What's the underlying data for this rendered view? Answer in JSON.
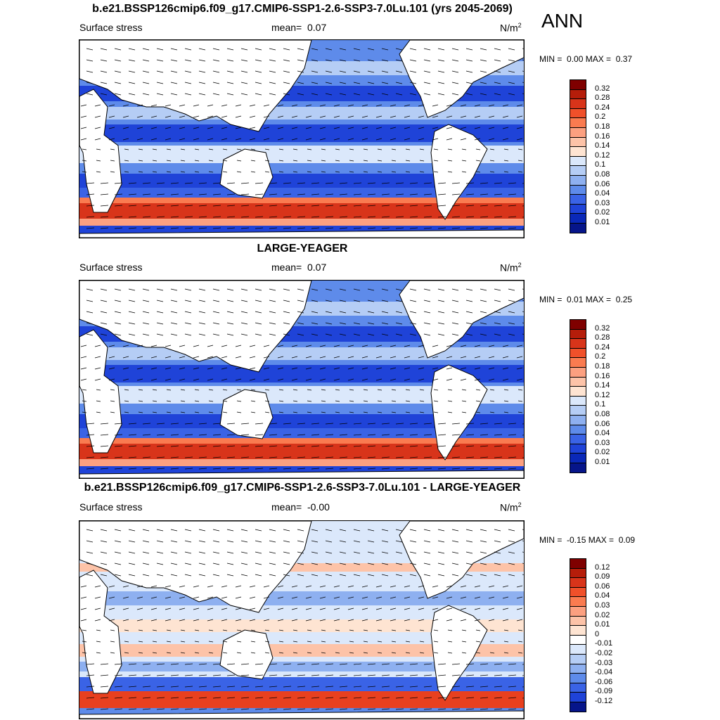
{
  "season": "ANN",
  "panels": [
    {
      "id": "test",
      "title": "b.e21.BSSP126cmip6.f09_g17.CMIP6-SSP1-2.6-SSP3-7.0Lu.101 (yrs 2045-2069)",
      "variable": "Surface stress",
      "mean_label": "mean=",
      "mean_value": "0.07",
      "units_base": "N/m",
      "units_exp": "2",
      "min_label": "MIN =",
      "min_value": "0.00",
      "max_label": "MAX =",
      "max_value": "0.37",
      "colorbar": {
        "labels": [
          "0.32",
          "0.28",
          "0.24",
          "0.2",
          "0.18",
          "0.16",
          "0.14",
          "0.12",
          "0.1",
          "0.08",
          "0.06",
          "0.04",
          "0.03",
          "0.02",
          "0.01"
        ],
        "colors": [
          "#7f0000",
          "#b51d0a",
          "#d8341a",
          "#f0502a",
          "#fa7b50",
          "#fca080",
          "#fdc3a8",
          "#fee4d2",
          "#dbe8fb",
          "#b5cdf5",
          "#8eb0f0",
          "#5e8bea",
          "#3a63e6",
          "#1f43d8",
          "#0a28b8",
          "#06158a"
        ]
      }
    },
    {
      "id": "obs",
      "title": "LARGE-YEAGER",
      "variable": "Surface stress",
      "mean_label": "mean=",
      "mean_value": "0.07",
      "units_base": "N/m",
      "units_exp": "2",
      "min_label": "MIN =",
      "min_value": "0.01",
      "max_label": "MAX =",
      "max_value": "0.25",
      "colorbar": {
        "labels": [
          "0.32",
          "0.28",
          "0.24",
          "0.2",
          "0.18",
          "0.16",
          "0.14",
          "0.12",
          "0.1",
          "0.08",
          "0.06",
          "0.04",
          "0.03",
          "0.02",
          "0.01"
        ],
        "colors": [
          "#7f0000",
          "#b51d0a",
          "#d8341a",
          "#f0502a",
          "#fa7b50",
          "#fca080",
          "#fdc3a8",
          "#fee4d2",
          "#dbe8fb",
          "#b5cdf5",
          "#8eb0f0",
          "#5e8bea",
          "#3a63e6",
          "#1f43d8",
          "#0a28b8",
          "#06158a"
        ]
      }
    },
    {
      "id": "diff",
      "title": "b.e21.BSSP126cmip6.f09_g17.CMIP6-SSP1-2.6-SSP3-7.0Lu.101 - LARGE-YEAGER",
      "variable": "Surface stress",
      "mean_label": "mean=",
      "mean_value": "-0.00",
      "units_base": "N/m",
      "units_exp": "2",
      "min_label": "MIN =",
      "min_value": "-0.15",
      "max_label": "MAX =",
      "max_value": "0.09",
      "colorbar": {
        "labels": [
          "0.12",
          "0.09",
          "0.06",
          "0.04",
          "0.03",
          "0.02",
          "0.01",
          "0",
          "-0.01",
          "-0.02",
          "-0.03",
          "-0.04",
          "-0.06",
          "-0.09",
          "-0.12"
        ],
        "colors": [
          "#7f0000",
          "#b51d0a",
          "#d8341a",
          "#f0502a",
          "#fa7b50",
          "#fca080",
          "#fdc3a8",
          "#fee4d2",
          "#ffffff",
          "#dbe8fb",
          "#b5cdf5",
          "#8eb0f0",
          "#5e8bea",
          "#3a63e6",
          "#1f43d8",
          "#06158a"
        ]
      }
    }
  ]
}
